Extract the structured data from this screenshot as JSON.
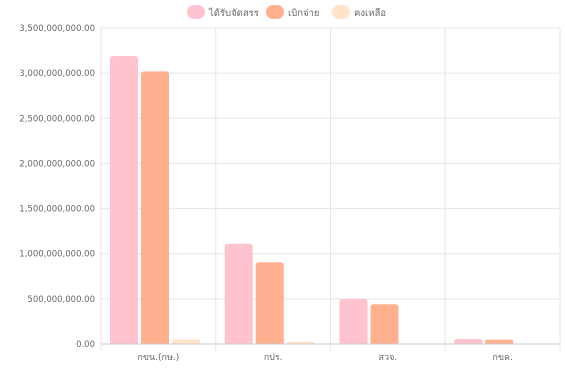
{
  "chart_data": {
    "type": "bar",
    "categories": [
      "กขน.(กษ.)",
      "กปร.",
      "สวจ.",
      "กขค."
    ],
    "series": [
      {
        "name": "ได้รับจัดสรร",
        "color": "#ffc2cf",
        "values": [
          3190000000,
          1110000000,
          500000000,
          55000000
        ]
      },
      {
        "name": "เบิกจ่าย",
        "color": "#ffb08e",
        "values": [
          3020000000,
          905000000,
          440000000,
          48000000
        ]
      },
      {
        "name": "คงเหลือ",
        "color": "#ffe4c9",
        "values": [
          50000000,
          25000000,
          5000000,
          3000000
        ]
      }
    ],
    "ylim": [
      0,
      3500000000
    ],
    "yticks": [
      0,
      500000000,
      1000000000,
      1500000000,
      2000000000,
      2500000000,
      3000000000,
      3500000000
    ],
    "ytick_labels": [
      "0.00",
      "500,000,000.00",
      "1,000,000,000.00",
      "1,500,000,000.00",
      "2,000,000,000.00",
      "2,500,000,000.00",
      "3,000,000,000.00",
      "3,500,000,000.00"
    ],
    "grid": true,
    "legend_position": "top-center"
  }
}
